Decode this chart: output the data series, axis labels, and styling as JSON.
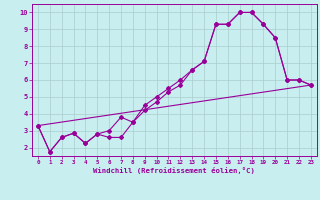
{
  "bg_color": "#c8eef0",
  "line_color": "#990099",
  "grid_color": "#aacccc",
  "xlim": [
    -0.5,
    23.5
  ],
  "ylim": [
    1.5,
    10.5
  ],
  "xticks": [
    0,
    1,
    2,
    3,
    4,
    5,
    6,
    7,
    8,
    9,
    10,
    11,
    12,
    13,
    14,
    15,
    16,
    17,
    18,
    19,
    20,
    21,
    22,
    23
  ],
  "yticks": [
    2,
    3,
    4,
    5,
    6,
    7,
    8,
    9,
    10
  ],
  "xlabel": "Windchill (Refroidissement éolien,°C)",
  "line1_x": [
    0,
    1,
    2,
    3,
    4,
    5,
    6,
    7,
    8,
    9,
    10,
    11,
    12,
    13,
    14,
    15,
    16,
    17,
    18,
    19,
    20,
    21,
    22,
    23
  ],
  "line1_y": [
    3.3,
    1.75,
    2.6,
    2.85,
    2.25,
    2.8,
    3.0,
    3.8,
    3.5,
    4.5,
    5.0,
    5.5,
    6.0,
    6.6,
    7.1,
    9.3,
    9.3,
    10.0,
    10.0,
    9.3,
    8.5,
    6.0,
    6.0,
    5.7
  ],
  "line2_x": [
    0,
    1,
    2,
    3,
    4,
    5,
    6,
    7,
    8,
    9,
    10,
    11,
    12,
    13,
    14,
    15,
    16,
    17,
    18,
    19,
    20,
    21,
    22,
    23
  ],
  "line2_y": [
    3.3,
    1.75,
    2.6,
    2.85,
    2.25,
    2.8,
    2.6,
    2.6,
    3.5,
    4.2,
    4.7,
    5.3,
    5.7,
    6.6,
    7.1,
    9.3,
    9.3,
    10.0,
    10.0,
    9.3,
    8.5,
    6.0,
    6.0,
    5.7
  ],
  "line3_x": [
    0,
    23
  ],
  "line3_y": [
    3.3,
    5.7
  ]
}
